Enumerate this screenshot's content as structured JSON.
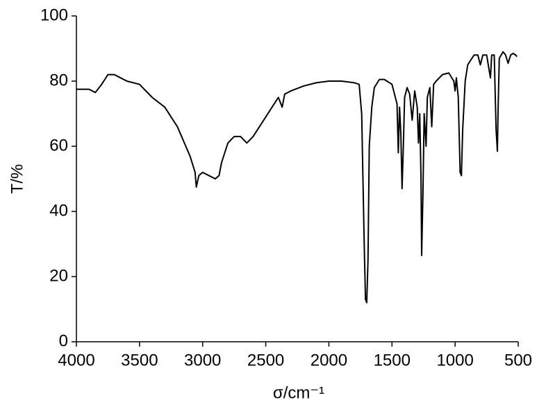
{
  "chart_data": {
    "type": "line",
    "xlabel": "σ/cm⁻¹",
    "ylabel": "T/%",
    "xlim": [
      4000,
      500
    ],
    "xticks": [
      4000,
      3500,
      3000,
      2500,
      2000,
      1500,
      1000,
      500
    ],
    "ylim": [
      0,
      100
    ],
    "yticks": [
      0,
      20,
      40,
      60,
      80,
      100
    ],
    "x": [
      4000,
      3900,
      3850,
      3800,
      3750,
      3700,
      3650,
      3600,
      3500,
      3400,
      3300,
      3200,
      3100,
      3060,
      3050,
      3030,
      3000,
      2950,
      2900,
      2870,
      2850,
      2800,
      2750,
      2700,
      2650,
      2600,
      2550,
      2500,
      2450,
      2400,
      2370,
      2350,
      2300,
      2200,
      2100,
      2000,
      1900,
      1800,
      1760,
      1740,
      1720,
      1710,
      1700,
      1690,
      1680,
      1660,
      1640,
      1600,
      1560,
      1500,
      1460,
      1450,
      1440,
      1430,
      1420,
      1410,
      1400,
      1380,
      1360,
      1340,
      1320,
      1300,
      1290,
      1280,
      1270,
      1265,
      1255,
      1245,
      1230,
      1220,
      1200,
      1185,
      1170,
      1150,
      1100,
      1050,
      1010,
      1000,
      990,
      975,
      960,
      950,
      940,
      920,
      900,
      850,
      820,
      800,
      780,
      750,
      720,
      710,
      690,
      675,
      665,
      660,
      650,
      620,
      600,
      580,
      560,
      540,
      520,
      510
    ],
    "series": [
      {
        "color": "#000000",
        "values": [
          77.5,
          77.5,
          76.5,
          79,
          82,
          82,
          81,
          80,
          79,
          75,
          72,
          66,
          57,
          52,
          47.5,
          51,
          52,
          51,
          50,
          51,
          55,
          61,
          63,
          63,
          61,
          63,
          66,
          69,
          72,
          75,
          72,
          76,
          77,
          78.5,
          79.5,
          80,
          80,
          79.5,
          79,
          70,
          30,
          13,
          12,
          25,
          60,
          72,
          78,
          80.5,
          80.5,
          79,
          73,
          58,
          72,
          64,
          47,
          60,
          75,
          78,
          76,
          68,
          77,
          72,
          61,
          70,
          50,
          26.5,
          45,
          70,
          60,
          75,
          78,
          66,
          79,
          80,
          82,
          82.5,
          80,
          77,
          81,
          75,
          52,
          51,
          65,
          80,
          85,
          88,
          88,
          85,
          88,
          88,
          81,
          88,
          88,
          65,
          58.5,
          70,
          87,
          89,
          88,
          85.5,
          88,
          88.5,
          88,
          87.5
        ]
      }
    ]
  }
}
